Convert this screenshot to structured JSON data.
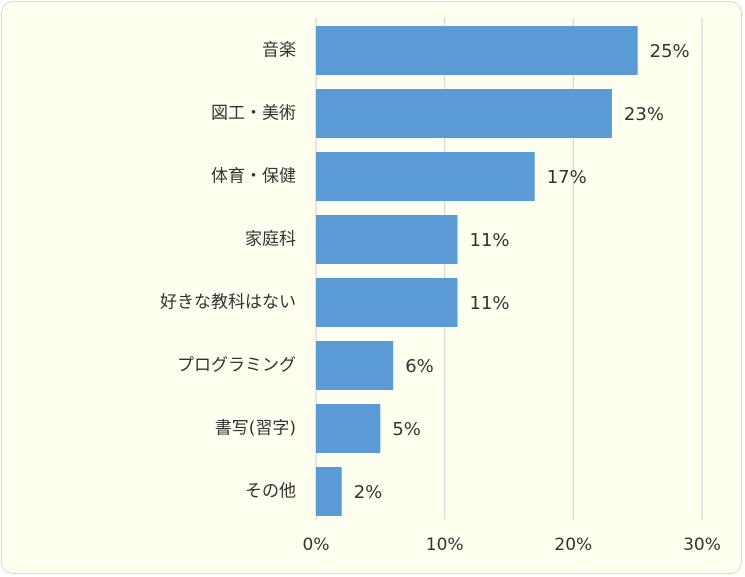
{
  "chart_data": {
    "type": "bar",
    "orientation": "horizontal",
    "categories": [
      "音楽",
      "図工・美術",
      "体育・保健",
      "家庭科",
      "好きな教科はない",
      "プログラミング",
      "書写(習字)",
      "その他"
    ],
    "values": [
      25,
      23,
      17,
      11,
      11,
      6,
      5,
      2
    ],
    "data_labels": [
      "25%",
      "23%",
      "17%",
      "11%",
      "11%",
      "6%",
      "5%",
      "2%"
    ],
    "x_ticks": [
      0,
      10,
      20,
      30
    ],
    "x_tick_labels": [
      "0%",
      "10%",
      "20%",
      "30%"
    ],
    "xlim": [
      0,
      30
    ],
    "title": "",
    "xlabel": "",
    "ylabel": "",
    "grid": "vertical",
    "legend": "none",
    "colors": {
      "bar": "#5b9bd5",
      "gridline": "#d9d9d9",
      "background": "#fffff0",
      "text": "#333333"
    }
  }
}
